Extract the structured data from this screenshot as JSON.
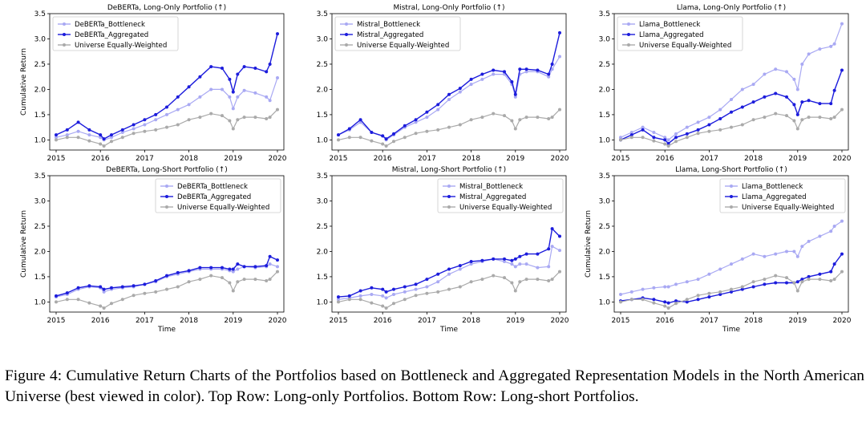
{
  "figure": {
    "caption": "Figure 4: Cumulative Return Charts of the Portfolios based on Bottleneck and Aggregated Representation Models in the North American Universe (best viewed in color). Top Row: Long-only Portfolios. Bottom Row: Long-short Portfolios."
  },
  "colors": {
    "bottleneck": "#a9a9f3",
    "aggregated": "#1c1cdc",
    "universe": "#aaaaaa"
  },
  "chart_data": [
    {
      "type": "line",
      "title": "DeBERTa, Long-Only Portfolio (↑)",
      "xlabel": "",
      "ylabel": "Cumulative Return",
      "xlim": [
        2015,
        2020
      ],
      "ylim": [
        0.8,
        3.5
      ],
      "xticks": [
        "2015",
        "2016",
        "2017",
        "2018",
        "2019",
        "2020"
      ],
      "yticks": [
        "1.0",
        "1.5",
        "2.0",
        "2.5",
        "3.0",
        "3.5"
      ],
      "legend": "upper-left",
      "x": [
        2015.0,
        2015.25,
        2015.5,
        2015.75,
        2016.0,
        2016.08,
        2016.25,
        2016.5,
        2016.75,
        2017.0,
        2017.25,
        2017.5,
        2017.75,
        2018.0,
        2018.25,
        2018.5,
        2018.75,
        2018.92,
        2019.0,
        2019.1,
        2019.25,
        2019.5,
        2019.75,
        2019.83,
        2020.0
      ],
      "series": [
        {
          "name": "DeBERTa_Bottleneck",
          "values": [
            1.05,
            1.1,
            1.17,
            1.1,
            1.05,
            1.0,
            1.05,
            1.15,
            1.22,
            1.3,
            1.4,
            1.5,
            1.6,
            1.7,
            1.85,
            2.0,
            2.0,
            1.85,
            1.62,
            1.85,
            1.98,
            1.93,
            1.85,
            1.78,
            2.23
          ]
        },
        {
          "name": "DeBERTa_Aggregated",
          "values": [
            1.1,
            1.2,
            1.35,
            1.2,
            1.1,
            1.02,
            1.1,
            1.2,
            1.3,
            1.4,
            1.5,
            1.65,
            1.85,
            2.05,
            2.25,
            2.45,
            2.42,
            2.2,
            1.95,
            2.3,
            2.45,
            2.42,
            2.35,
            2.5,
            3.1
          ]
        },
        {
          "name": "Universe Equally-Weighted",
          "values": [
            1.0,
            1.05,
            1.05,
            0.98,
            0.92,
            0.88,
            0.97,
            1.05,
            1.13,
            1.17,
            1.2,
            1.25,
            1.3,
            1.4,
            1.45,
            1.52,
            1.48,
            1.38,
            1.22,
            1.4,
            1.45,
            1.45,
            1.42,
            1.45,
            1.6
          ]
        }
      ]
    },
    {
      "type": "line",
      "title": "Mistral, Long-Only Portfolio (↑)",
      "xlabel": "",
      "ylabel": "",
      "xlim": [
        2015,
        2020
      ],
      "ylim": [
        0.8,
        3.5
      ],
      "xticks": [
        "2015",
        "2016",
        "2017",
        "2018",
        "2019",
        "2020"
      ],
      "yticks": [
        "1.0",
        "1.5",
        "2.0",
        "2.5",
        "3.0",
        "3.5"
      ],
      "legend": "upper-left",
      "x": [
        2015.0,
        2015.25,
        2015.5,
        2015.75,
        2016.0,
        2016.08,
        2016.25,
        2016.5,
        2016.75,
        2017.0,
        2017.25,
        2017.5,
        2017.75,
        2018.0,
        2018.25,
        2018.5,
        2018.75,
        2018.92,
        2019.0,
        2019.1,
        2019.25,
        2019.5,
        2019.75,
        2019.83,
        2020.0
      ],
      "series": [
        {
          "name": "Mistral_Bottleneck",
          "values": [
            1.1,
            1.2,
            1.35,
            1.15,
            1.08,
            1.0,
            1.1,
            1.25,
            1.35,
            1.45,
            1.6,
            1.8,
            1.95,
            2.1,
            2.2,
            2.3,
            2.3,
            2.1,
            1.85,
            2.3,
            2.35,
            2.35,
            2.25,
            2.4,
            2.65
          ]
        },
        {
          "name": "Mistral_Aggregated",
          "values": [
            1.1,
            1.22,
            1.4,
            1.15,
            1.08,
            1.02,
            1.12,
            1.28,
            1.4,
            1.55,
            1.7,
            1.9,
            2.02,
            2.2,
            2.3,
            2.38,
            2.35,
            2.15,
            1.9,
            2.4,
            2.4,
            2.38,
            2.3,
            2.5,
            3.12
          ]
        },
        {
          "name": "Universe Equally-Weighted",
          "values": [
            1.0,
            1.05,
            1.05,
            0.98,
            0.92,
            0.88,
            0.97,
            1.05,
            1.13,
            1.17,
            1.2,
            1.25,
            1.3,
            1.4,
            1.45,
            1.52,
            1.48,
            1.38,
            1.22,
            1.4,
            1.45,
            1.45,
            1.42,
            1.45,
            1.6
          ]
        }
      ]
    },
    {
      "type": "line",
      "title": "Llama, Long-Only Portfolio (↑)",
      "xlabel": "",
      "ylabel": "",
      "xlim": [
        2015,
        2020
      ],
      "ylim": [
        0.8,
        3.5
      ],
      "xticks": [
        "2015",
        "2016",
        "2017",
        "2018",
        "2019",
        "2020"
      ],
      "yticks": [
        "1.0",
        "1.5",
        "2.0",
        "2.5",
        "3.0",
        "3.5"
      ],
      "legend": "upper-left",
      "x": [
        2015.0,
        2015.25,
        2015.5,
        2015.75,
        2016.0,
        2016.08,
        2016.25,
        2016.5,
        2016.75,
        2017.0,
        2017.25,
        2017.5,
        2017.75,
        2018.0,
        2018.25,
        2018.5,
        2018.75,
        2018.92,
        2019.0,
        2019.1,
        2019.25,
        2019.5,
        2019.75,
        2019.83,
        2020.0
      ],
      "series": [
        {
          "name": "Llama_Bottleneck",
          "values": [
            1.05,
            1.15,
            1.25,
            1.15,
            1.05,
            1.0,
            1.12,
            1.25,
            1.35,
            1.45,
            1.6,
            1.8,
            2.0,
            2.1,
            2.3,
            2.4,
            2.35,
            2.2,
            2.0,
            2.5,
            2.7,
            2.8,
            2.85,
            2.9,
            3.3
          ]
        },
        {
          "name": "Llama_Aggregated",
          "values": [
            1.0,
            1.1,
            1.2,
            1.05,
            1.0,
            0.93,
            1.05,
            1.12,
            1.2,
            1.3,
            1.42,
            1.55,
            1.65,
            1.75,
            1.85,
            1.92,
            1.85,
            1.7,
            1.5,
            1.75,
            1.78,
            1.72,
            1.72,
            1.98,
            2.38
          ]
        },
        {
          "name": "Universe Equally-Weighted",
          "values": [
            1.0,
            1.05,
            1.05,
            0.98,
            0.92,
            0.88,
            0.97,
            1.05,
            1.13,
            1.17,
            1.2,
            1.25,
            1.3,
            1.4,
            1.45,
            1.52,
            1.48,
            1.38,
            1.22,
            1.4,
            1.45,
            1.45,
            1.42,
            1.45,
            1.6
          ]
        }
      ]
    },
    {
      "type": "line",
      "title": "DeBERTa, Long-Short Portfolio (↑)",
      "xlabel": "Time",
      "ylabel": "Cumulative Return",
      "xlim": [
        2015,
        2020
      ],
      "ylim": [
        0.8,
        3.5
      ],
      "xticks": [
        "2015",
        "2016",
        "2017",
        "2018",
        "2019",
        "2020"
      ],
      "yticks": [
        "1.0",
        "1.5",
        "2.0",
        "2.5",
        "3.0",
        "3.5"
      ],
      "legend": "upper-right",
      "x": [
        2015.0,
        2015.25,
        2015.5,
        2015.75,
        2016.0,
        2016.08,
        2016.25,
        2016.5,
        2016.75,
        2017.0,
        2017.25,
        2017.5,
        2017.75,
        2018.0,
        2018.25,
        2018.5,
        2018.75,
        2018.92,
        2019.0,
        2019.1,
        2019.25,
        2019.5,
        2019.75,
        2019.83,
        2020.0
      ],
      "series": [
        {
          "name": "DeBERTa_Bottleneck",
          "values": [
            1.1,
            1.15,
            1.25,
            1.3,
            1.28,
            1.2,
            1.25,
            1.28,
            1.3,
            1.35,
            1.4,
            1.5,
            1.55,
            1.6,
            1.65,
            1.65,
            1.65,
            1.62,
            1.6,
            1.65,
            1.7,
            1.68,
            1.7,
            1.75,
            1.7
          ]
        },
        {
          "name": "DeBERTa_Aggregated",
          "values": [
            1.12,
            1.18,
            1.28,
            1.32,
            1.3,
            1.25,
            1.28,
            1.3,
            1.32,
            1.35,
            1.42,
            1.52,
            1.58,
            1.62,
            1.68,
            1.68,
            1.68,
            1.65,
            1.65,
            1.75,
            1.7,
            1.7,
            1.72,
            1.9,
            1.83
          ]
        },
        {
          "name": "Universe Equally-Weighted",
          "values": [
            1.0,
            1.05,
            1.05,
            0.98,
            0.92,
            0.88,
            0.97,
            1.05,
            1.13,
            1.17,
            1.2,
            1.25,
            1.3,
            1.4,
            1.45,
            1.52,
            1.48,
            1.38,
            1.22,
            1.4,
            1.45,
            1.45,
            1.42,
            1.45,
            1.6
          ]
        }
      ]
    },
    {
      "type": "line",
      "title": "Mistral, Long-Short Portfolio (↑)",
      "xlabel": "Time",
      "ylabel": "",
      "xlim": [
        2015,
        2020
      ],
      "ylim": [
        0.8,
        3.5
      ],
      "xticks": [
        "2015",
        "2016",
        "2017",
        "2018",
        "2019",
        "2020"
      ],
      "yticks": [
        "1.0",
        "1.5",
        "2.0",
        "2.5",
        "3.0",
        "3.5"
      ],
      "legend": "upper-right",
      "x": [
        2015.0,
        2015.25,
        2015.5,
        2015.75,
        2016.0,
        2016.08,
        2016.25,
        2016.5,
        2016.75,
        2017.0,
        2017.25,
        2017.5,
        2017.75,
        2018.0,
        2018.25,
        2018.5,
        2018.75,
        2018.92,
        2019.0,
        2019.1,
        2019.25,
        2019.5,
        2019.75,
        2019.83,
        2020.0
      ],
      "series": [
        {
          "name": "Mistral_Bottleneck",
          "values": [
            1.05,
            1.08,
            1.12,
            1.15,
            1.12,
            1.08,
            1.15,
            1.2,
            1.25,
            1.3,
            1.4,
            1.55,
            1.65,
            1.75,
            1.8,
            1.85,
            1.8,
            1.75,
            1.7,
            1.75,
            1.75,
            1.68,
            1.7,
            2.1,
            2.02
          ]
        },
        {
          "name": "Mistral_Aggregated",
          "values": [
            1.1,
            1.12,
            1.22,
            1.28,
            1.25,
            1.2,
            1.25,
            1.3,
            1.35,
            1.45,
            1.55,
            1.65,
            1.72,
            1.8,
            1.82,
            1.85,
            1.85,
            1.82,
            1.85,
            1.9,
            1.95,
            1.95,
            2.05,
            2.45,
            2.3
          ]
        },
        {
          "name": "Universe Equally-Weighted",
          "values": [
            1.0,
            1.05,
            1.05,
            0.98,
            0.92,
            0.88,
            0.97,
            1.05,
            1.13,
            1.17,
            1.2,
            1.25,
            1.3,
            1.4,
            1.45,
            1.52,
            1.48,
            1.38,
            1.22,
            1.4,
            1.45,
            1.45,
            1.42,
            1.45,
            1.6
          ]
        }
      ]
    },
    {
      "type": "line",
      "title": "Llama, Long-Short Portfolio (↑)",
      "xlabel": "Time",
      "ylabel": "Cumulative Return",
      "xlim": [
        2015,
        2020
      ],
      "ylim": [
        0.8,
        3.5
      ],
      "xticks": [
        "2015",
        "2016",
        "2017",
        "2018",
        "2019",
        "2020"
      ],
      "yticks": [
        "1.0",
        "1.5",
        "2.0",
        "2.5",
        "3.0",
        "3.5"
      ],
      "legend": "upper-right",
      "x": [
        2015.0,
        2015.25,
        2015.5,
        2015.75,
        2016.0,
        2016.08,
        2016.25,
        2016.5,
        2016.75,
        2017.0,
        2017.25,
        2017.5,
        2017.75,
        2018.0,
        2018.25,
        2018.5,
        2018.75,
        2018.92,
        2019.0,
        2019.1,
        2019.25,
        2019.5,
        2019.75,
        2019.83,
        2020.0
      ],
      "series": [
        {
          "name": "Llama_Bottleneck",
          "values": [
            1.15,
            1.2,
            1.25,
            1.28,
            1.3,
            1.3,
            1.35,
            1.4,
            1.45,
            1.55,
            1.65,
            1.75,
            1.85,
            1.95,
            1.9,
            1.95,
            2.0,
            2.0,
            1.9,
            2.1,
            2.2,
            2.3,
            2.4,
            2.5,
            2.6
          ]
        },
        {
          "name": "Llama_Aggregated",
          "values": [
            1.02,
            1.05,
            1.08,
            1.05,
            1.0,
            0.98,
            1.02,
            1.0,
            1.05,
            1.1,
            1.15,
            1.2,
            1.25,
            1.3,
            1.35,
            1.38,
            1.38,
            1.38,
            1.4,
            1.45,
            1.5,
            1.55,
            1.6,
            1.75,
            1.95
          ]
        },
        {
          "name": "Universe Equally-Weighted",
          "values": [
            1.0,
            1.05,
            1.05,
            0.98,
            0.92,
            0.88,
            0.97,
            1.05,
            1.13,
            1.17,
            1.2,
            1.25,
            1.3,
            1.4,
            1.45,
            1.52,
            1.48,
            1.38,
            1.22,
            1.4,
            1.45,
            1.45,
            1.42,
            1.45,
            1.6
          ]
        }
      ]
    }
  ]
}
